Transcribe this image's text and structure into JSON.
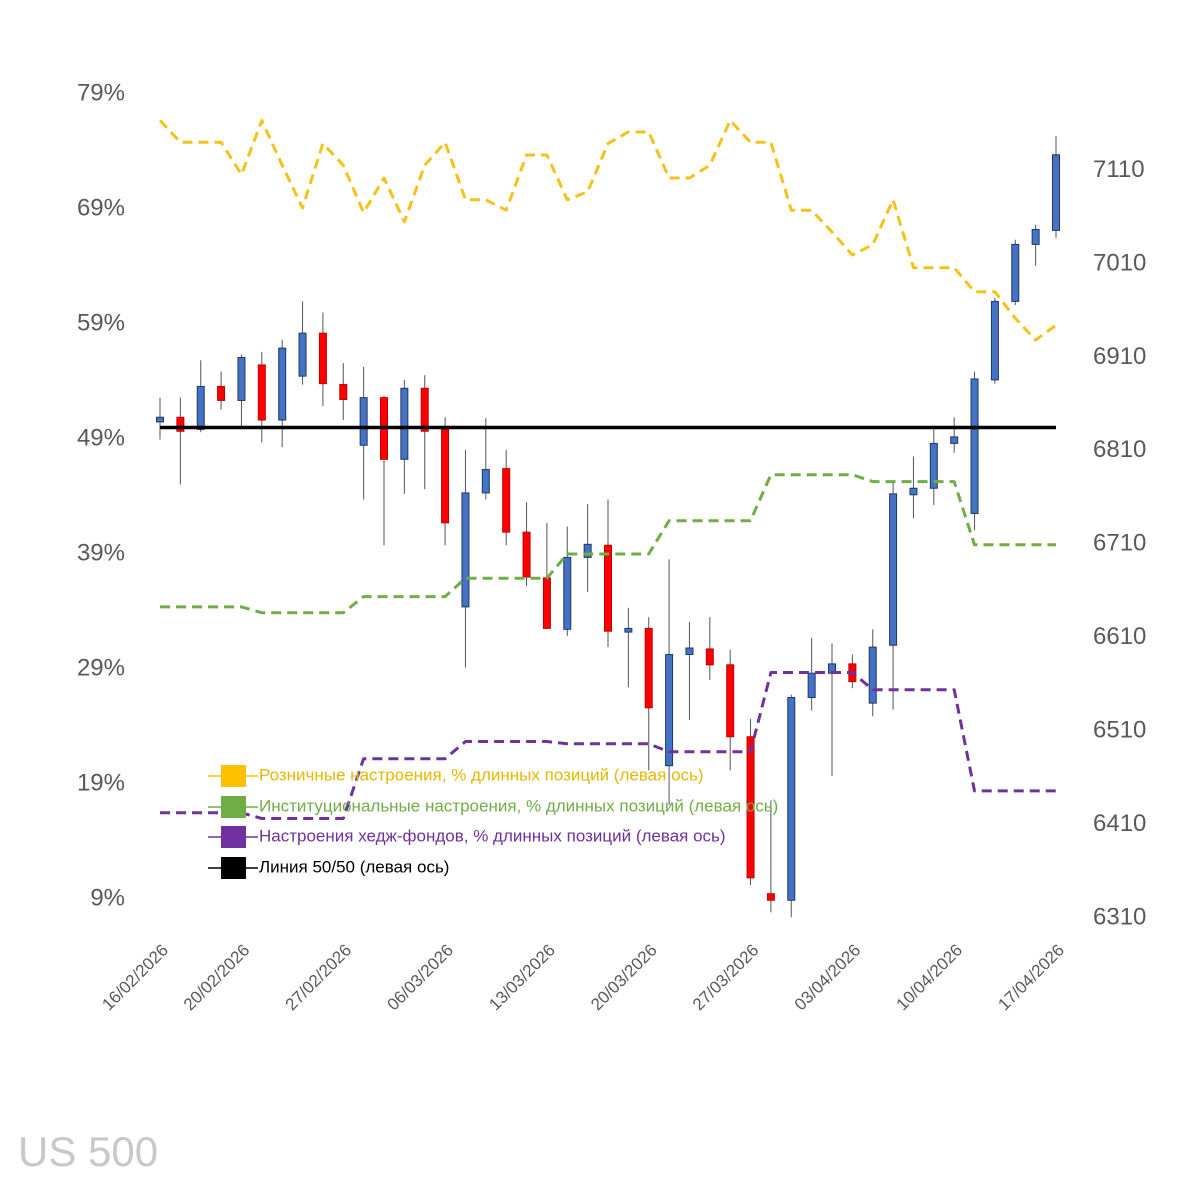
{
  "chart_data": {
    "type": "candlestick",
    "watermark": "US 500",
    "categories": [
      "16/02/2026",
      null,
      null,
      null,
      "20/02/2026",
      null,
      null,
      null,
      null,
      "27/02/2026",
      null,
      null,
      null,
      null,
      "06/03/2026",
      null,
      null,
      null,
      null,
      "13/03/2026",
      null,
      null,
      null,
      null,
      "20/03/2026",
      null,
      null,
      null,
      null,
      "27/03/2026",
      null,
      null,
      null,
      null,
      "03/04/2026",
      null,
      null,
      null,
      null,
      "10/04/2026",
      null,
      null,
      null,
      null,
      "17/04/2026"
    ],
    "up_color": "#4472c4",
    "down_color": "#ff0000",
    "open": [
      6841,
      6846,
      6833,
      6879,
      6864,
      6902,
      6843,
      6890,
      6936,
      6881,
      6816,
      6867,
      6801,
      6877,
      6833,
      6643,
      6765,
      6791,
      6723,
      6674,
      6619,
      6696,
      6709,
      6616,
      6620,
      6473,
      6592,
      6598,
      6581,
      6504,
      6336,
      6329,
      6546,
      6572,
      6582,
      6540,
      6602,
      6763,
      6770,
      6818,
      6743,
      6886,
      6970,
      7031,
      7046
    ],
    "high": [
      6867,
      6867,
      6907,
      6895,
      6913,
      6916,
      6929,
      6970,
      6958,
      6904,
      6900,
      6869,
      6886,
      6891,
      6846,
      6811,
      6845,
      6811,
      6755,
      6733,
      6729,
      6753,
      6758,
      6642,
      6632,
      6694,
      6627,
      6632,
      6597,
      6523,
      6436,
      6549,
      6610,
      6604,
      6592,
      6619,
      6778,
      6804,
      6835,
      6846,
      6895,
      6974,
      7036,
      7052,
      7147
    ],
    "low": [
      6822,
      6774,
      6830,
      6854,
      6833,
      6819,
      6814,
      6881,
      6858,
      6843,
      6758,
      6709,
      6764,
      6769,
      6709,
      6578,
      6758,
      6709,
      6665,
      6620,
      6612,
      6659,
      6600,
      6557,
      6468,
      6431,
      6522,
      6565,
      6468,
      6345,
      6316,
      6311,
      6532,
      6462,
      6556,
      6526,
      6533,
      6738,
      6752,
      6808,
      6725,
      6882,
      6966,
      7008,
      7038
    ],
    "close": [
      6846,
      6831,
      6879,
      6864,
      6910,
      6843,
      6920,
      6936,
      6882,
      6865,
      6867,
      6801,
      6877,
      6831,
      6733,
      6765,
      6790,
      6723,
      6675,
      6620,
      6696,
      6710,
      6617,
      6620,
      6535,
      6592,
      6599,
      6581,
      6504,
      6353,
      6329,
      6546,
      6572,
      6582,
      6563,
      6600,
      6764,
      6770,
      6818,
      6825,
      6887,
      6970,
      7031,
      7047,
      7127
    ],
    "series": [
      {
        "name": "Розничные настроения, % длинных позиций (левая ось)",
        "color": "#f5c21b",
        "legend_color": "#ffc000",
        "style": "dashed",
        "values": [
          76.7,
          74.8,
          74.8,
          74.8,
          72.0,
          76.7,
          72.8,
          69.1,
          74.7,
          72.8,
          68.7,
          71.7,
          67.9,
          72.8,
          74.8,
          69.8,
          69.8,
          68.9,
          73.7,
          73.7,
          69.8,
          70.5,
          74.7,
          75.7,
          75.7,
          71.7,
          71.7,
          72.8,
          76.7,
          74.8,
          74.8,
          68.9,
          68.9,
          67.0,
          65.0,
          65.9,
          69.8,
          63.9,
          63.9,
          63.9,
          61.8,
          61.8,
          59.5,
          57.6,
          58.9
        ]
      },
      {
        "name": "Институциональные настроения, % длинных позиций (левая ось)",
        "color": "#70ad47",
        "legend_color": "#70ad47",
        "style": "dashed",
        "values": [
          34.4,
          34.4,
          34.4,
          34.4,
          34.4,
          33.9,
          33.9,
          33.9,
          33.9,
          33.9,
          35.3,
          35.3,
          35.3,
          35.3,
          35.3,
          36.9,
          36.9,
          36.9,
          36.9,
          36.9,
          39.0,
          39.0,
          39.0,
          39.0,
          39.0,
          41.9,
          41.9,
          41.9,
          41.9,
          41.9,
          45.9,
          45.9,
          45.9,
          45.9,
          45.9,
          45.3,
          45.3,
          45.3,
          45.3,
          45.3,
          39.8,
          39.8,
          39.8,
          39.8,
          39.8
        ]
      },
      {
        "name": "Настроения хедж-фондов, % длинных позиций (левая ось)",
        "color": "#7030a0",
        "legend_color": "#7030a0",
        "style": "dashed",
        "values": [
          16.5,
          16.5,
          16.5,
          16.5,
          16.5,
          16.0,
          16.0,
          16.0,
          16.0,
          16.0,
          21.2,
          21.2,
          21.2,
          21.2,
          21.2,
          22.7,
          22.7,
          22.7,
          22.7,
          22.7,
          22.5,
          22.5,
          22.5,
          22.5,
          22.5,
          21.8,
          21.8,
          21.8,
          21.8,
          21.8,
          28.7,
          28.7,
          28.7,
          28.7,
          28.7,
          27.2,
          27.2,
          27.2,
          27.2,
          27.2,
          18.4,
          18.4,
          18.4,
          18.4,
          18.4
        ]
      },
      {
        "name": "Линия 50/50 (левая ось)",
        "color": "#000000",
        "legend_color": "#000000",
        "style": "solid",
        "values": [
          50,
          50,
          50,
          50,
          50,
          50,
          50,
          50,
          50,
          50,
          50,
          50,
          50,
          50,
          50,
          50,
          50,
          50,
          50,
          50,
          50,
          50,
          50,
          50,
          50,
          50,
          50,
          50,
          50,
          50,
          50,
          50,
          50,
          50,
          50,
          50,
          50,
          50,
          50,
          50,
          50,
          50,
          50,
          50,
          50
        ]
      }
    ],
    "ylim": [
      7.35,
      79
    ],
    "yticks": [
      {
        "value": 79,
        "label": "79%"
      },
      {
        "value": 69,
        "label": "69%"
      },
      {
        "value": 59,
        "label": "59%"
      },
      {
        "value": 49,
        "label": "49%"
      },
      {
        "value": 39,
        "label": "39%"
      },
      {
        "value": 29,
        "label": "29%"
      },
      {
        "value": 19,
        "label": "19%"
      },
      {
        "value": 9,
        "label": "9%"
      }
    ],
    "y2lim": [
      6310,
      7192
    ],
    "y2ticks": [
      7110,
      7010,
      6910,
      6810,
      6710,
      6610,
      6510,
      6410,
      6310
    ],
    "legend": "lower-left"
  }
}
